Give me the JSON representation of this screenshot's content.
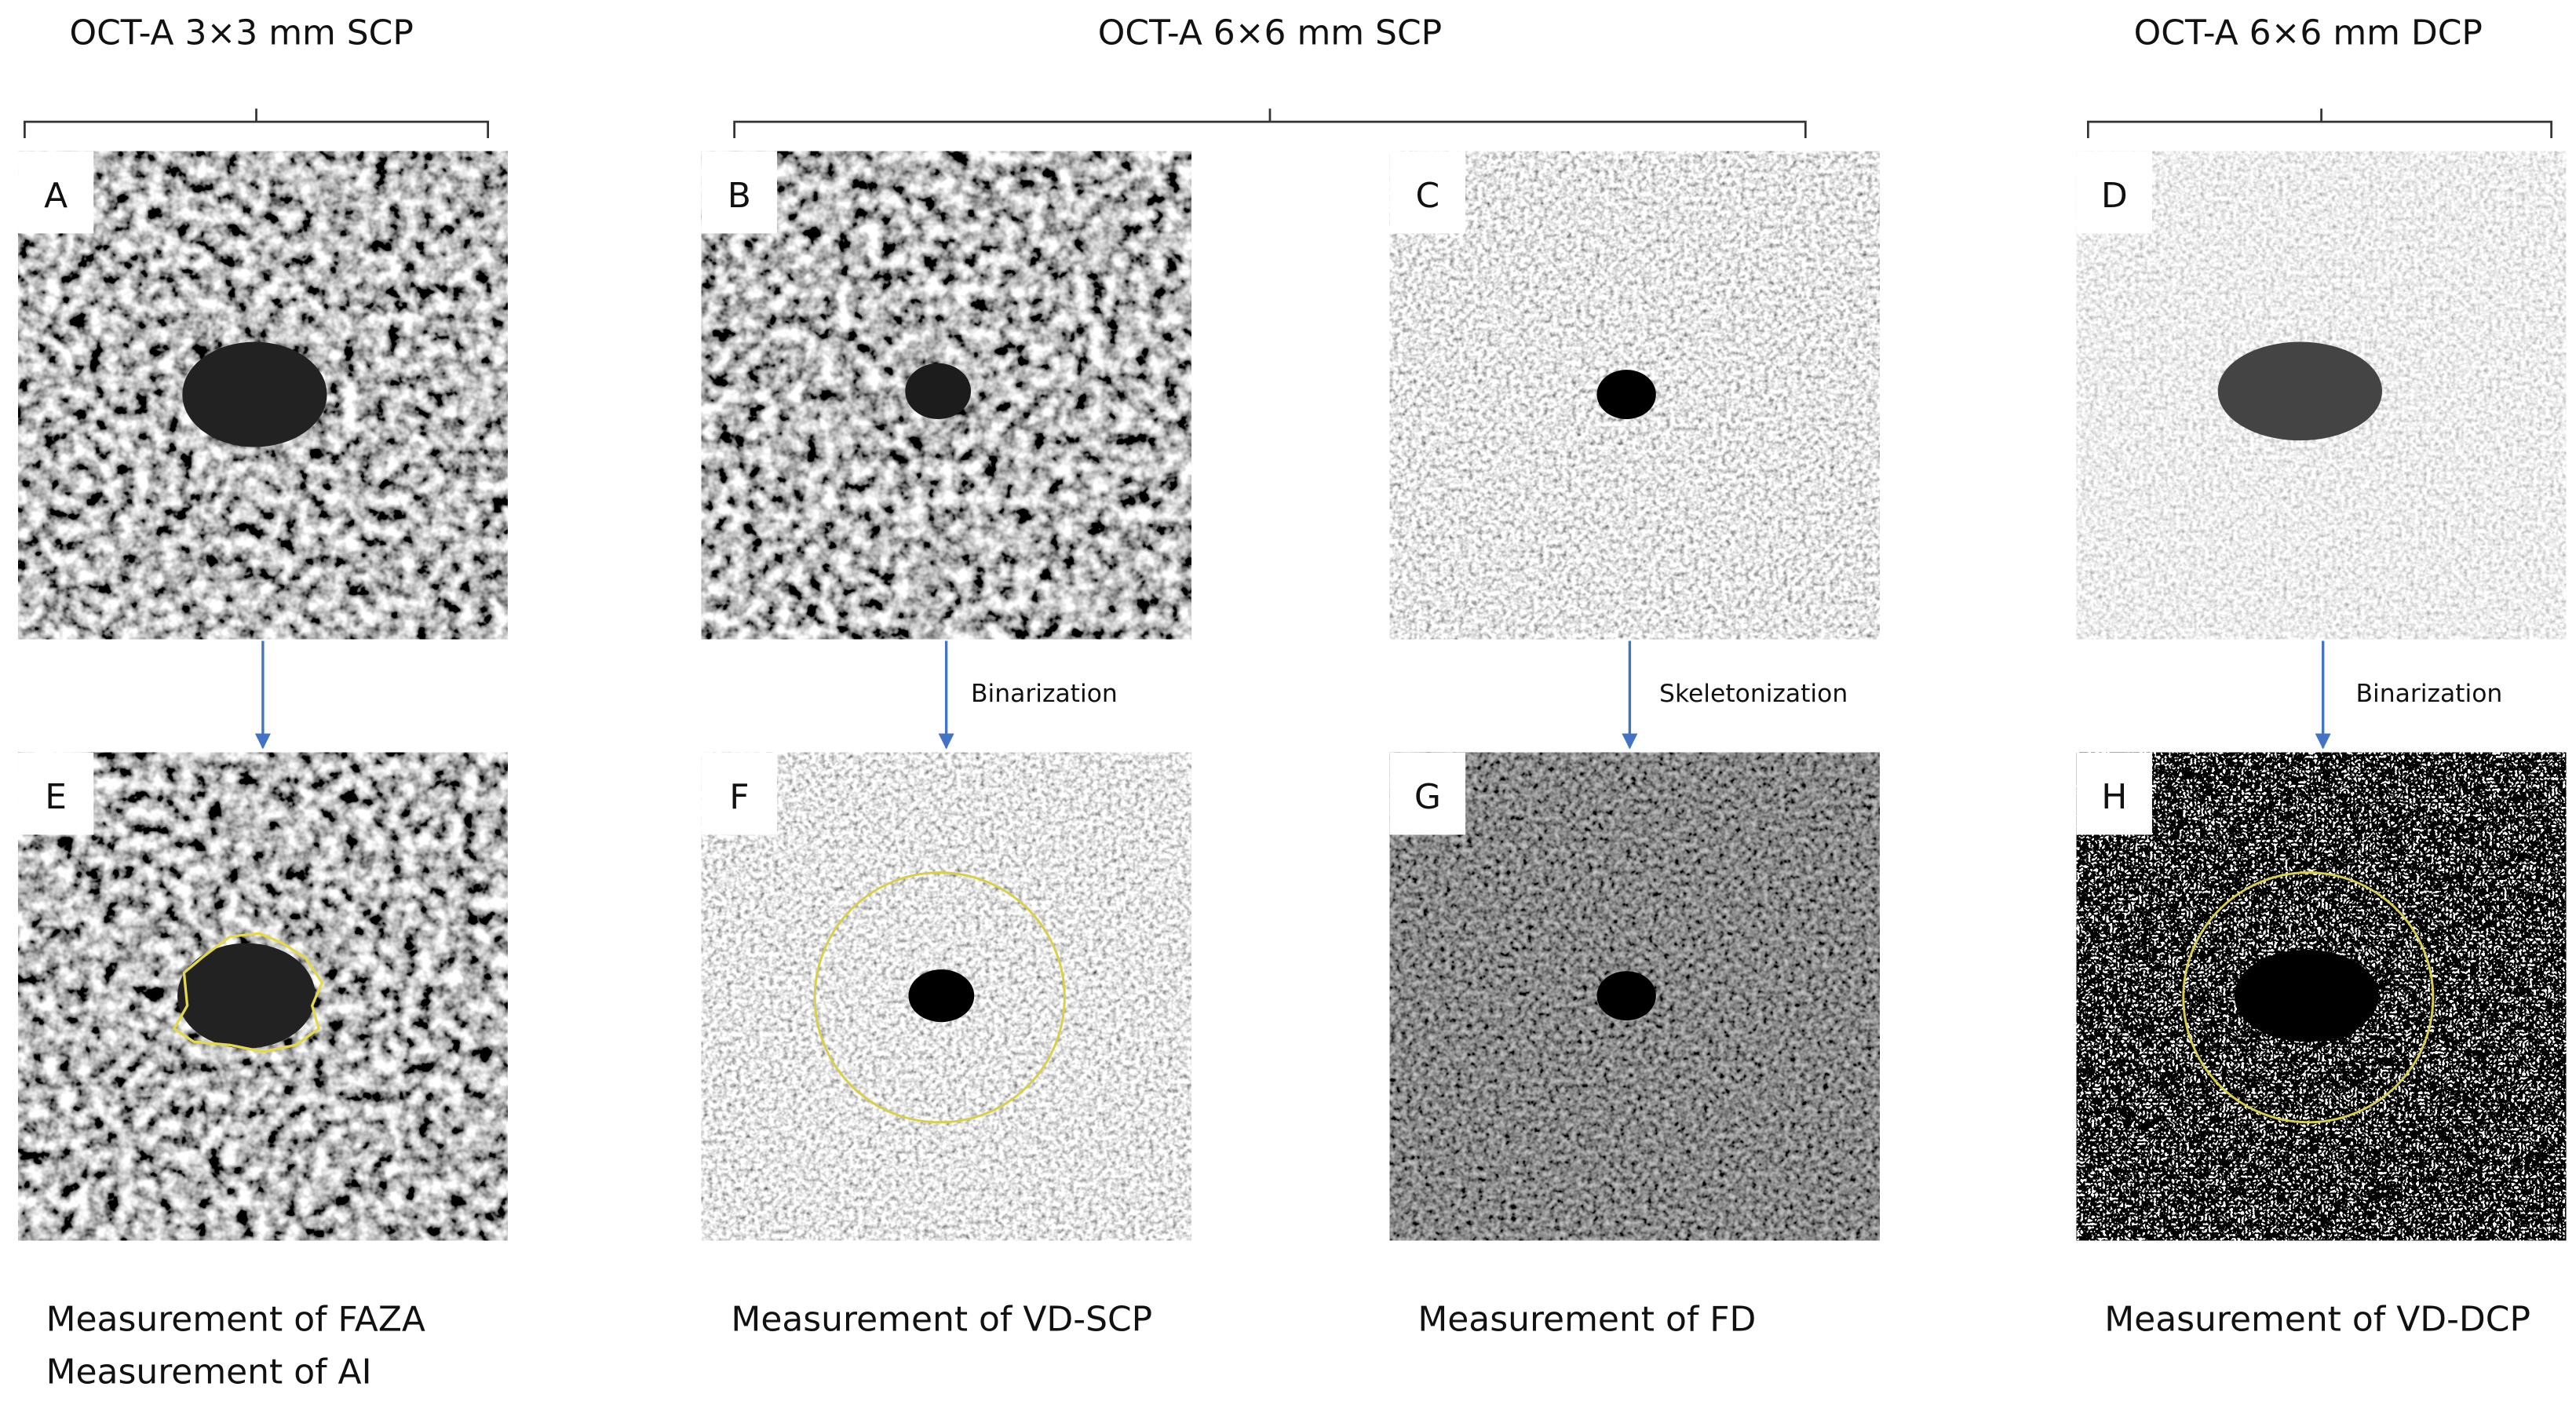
{
  "headers": [
    "OCT-A 3×3 mm SCP",
    "OCT-A 6×6 mm SCP",
    "OCT-A 6×6 mm DCP"
  ],
  "panels": [
    {
      "label": "A"
    },
    {
      "label": "B"
    },
    {
      "label": "C"
    },
    {
      "label": "D"
    },
    {
      "label": "E"
    },
    {
      "label": "F"
    },
    {
      "label": "G"
    },
    {
      "label": "H"
    }
  ],
  "steps": [
    "Binarization",
    "Skeletonization",
    "Binarization"
  ],
  "measurements": [
    [
      "Measurement of FAZA",
      "Measurement of AI"
    ],
    [
      "Measurement of VD-SCP"
    ],
    [
      "Measurement of FD"
    ],
    [
      "Measurement of VD-DCP"
    ]
  ]
}
